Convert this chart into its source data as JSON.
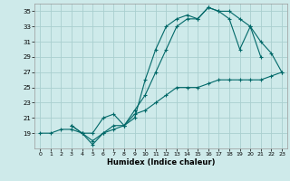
{
  "xlabel": "Humidex (Indice chaleur)",
  "bg_color": "#ceeaea",
  "grid_color": "#aacfcf",
  "line_color": "#006868",
  "xlim": [
    -0.5,
    23.5
  ],
  "ylim": [
    17,
    36
  ],
  "xticks": [
    0,
    1,
    2,
    3,
    4,
    5,
    6,
    7,
    8,
    9,
    10,
    11,
    12,
    13,
    14,
    15,
    16,
    17,
    18,
    19,
    20,
    21,
    22,
    23
  ],
  "yticks": [
    19,
    21,
    23,
    25,
    27,
    29,
    31,
    33,
    35
  ],
  "line1_x": [
    0,
    1,
    2,
    3,
    4,
    5,
    6,
    7,
    8,
    9,
    10,
    11,
    12,
    13,
    14,
    15,
    16,
    17,
    18,
    19,
    20,
    21,
    22,
    23
  ],
  "line1_y": [
    19,
    19,
    19.5,
    19.5,
    19,
    18,
    19,
    19.5,
    20,
    21.5,
    22,
    23,
    24,
    25,
    25,
    25,
    25.5,
    26,
    26,
    26,
    26,
    26,
    26.5,
    27
  ],
  "line2_x": [
    3,
    4,
    5,
    6,
    7,
    8,
    9,
    10,
    11,
    12,
    13,
    14,
    15,
    16,
    17,
    18,
    19,
    20,
    21
  ],
  "line2_y": [
    20,
    19,
    19,
    21,
    21.5,
    20,
    22,
    24,
    27,
    30,
    33,
    34,
    34,
    35.5,
    35,
    35,
    34,
    33,
    29
  ],
  "line3_x": [
    3,
    4,
    5,
    6,
    7,
    8,
    9,
    10,
    11,
    12,
    13,
    14,
    15,
    16,
    17,
    18,
    19,
    20,
    21,
    22,
    23
  ],
  "line3_y": [
    20,
    19,
    17.5,
    19,
    20,
    20,
    21,
    26,
    30,
    33,
    34,
    34.5,
    34,
    35.5,
    35,
    34,
    30,
    33,
    31,
    29.5,
    27
  ]
}
